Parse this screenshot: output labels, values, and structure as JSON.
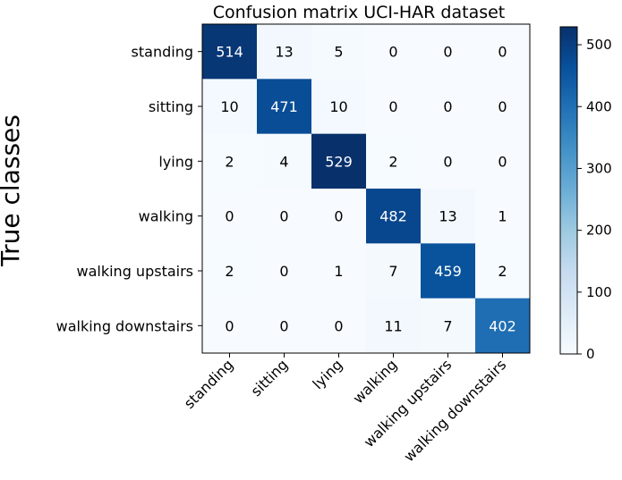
{
  "chart_data": {
    "type": "heatmap",
    "title": "Confusion matrix UCI-HAR dataset",
    "ylabel": "True classes",
    "xlabel": "",
    "row_labels": [
      "standing",
      "sitting",
      "lying",
      "walking",
      "walking upstairs",
      "walking downstairs"
    ],
    "col_labels": [
      "standing",
      "sitting",
      "lying",
      "walking",
      "walking upstairs",
      "walking downstairs"
    ],
    "values": [
      [
        514,
        13,
        5,
        0,
        0,
        0
      ],
      [
        10,
        471,
        10,
        0,
        0,
        0
      ],
      [
        2,
        4,
        529,
        2,
        0,
        0
      ],
      [
        0,
        0,
        0,
        482,
        13,
        1
      ],
      [
        2,
        0,
        1,
        7,
        459,
        2
      ],
      [
        0,
        0,
        0,
        11,
        7,
        402
      ]
    ],
    "colormap": "Blues",
    "colorbar": {
      "range": [
        0,
        529
      ],
      "ticks": [
        0,
        100,
        200,
        300,
        400,
        500
      ]
    },
    "colors": {
      "low": "#f7fbff",
      "mid": "#9ecae1",
      "high": "#08306b",
      "text_light": "#ffffff",
      "text_dark": "#000000"
    }
  }
}
